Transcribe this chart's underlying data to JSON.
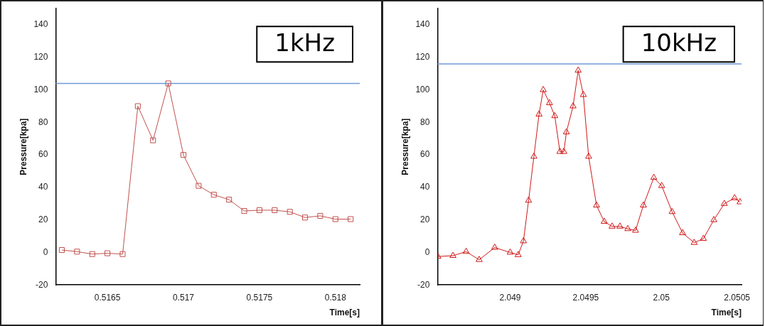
{
  "chart_data": [
    {
      "type": "line",
      "xlabel": "Time[s]",
      "ylabel": "Pressure[kpa]",
      "annotations": [
        "1kHz"
      ],
      "marker": "square",
      "xlim": [
        0.51616,
        0.51816
      ],
      "xticks": [
        0.5165,
        0.517,
        0.5175,
        0.518
      ],
      "ylim": [
        -20,
        150
      ],
      "yticks": [
        -20,
        0,
        20,
        40,
        60,
        80,
        100,
        120,
        140
      ],
      "ref_lines": [
        {
          "axis": "y",
          "value": 104,
          "color": "#6f9ad8"
        }
      ],
      "series": [
        {
          "color": "#c0504d",
          "x": [
            0.5162,
            0.5163,
            0.5164,
            0.5165,
            0.5166,
            0.5167,
            0.5168,
            0.5169,
            0.517,
            0.5171,
            0.5172,
            0.5173,
            0.5174,
            0.5175,
            0.5176,
            0.5177,
            0.5178,
            0.5179,
            0.518,
            0.5181
          ],
          "values": [
            1.5,
            0.5,
            -1,
            -0.5,
            -1,
            90,
            69,
            104,
            60,
            41,
            35.5,
            32.5,
            25.5,
            26,
            26,
            25,
            21.5,
            22.5,
            20.5,
            20.5
          ]
        }
      ]
    },
    {
      "type": "line",
      "xlabel": "Time[s]",
      "ylabel": "Pressure[kpa]",
      "annotations": [
        "10kHz"
      ],
      "marker": "triangle",
      "xlim": [
        2.04852,
        2.05053
      ],
      "xticks": [
        2.049,
        2.0495,
        2.05,
        2.0505
      ],
      "ylim": [
        -20,
        150
      ],
      "yticks": [
        -20,
        0,
        20,
        40,
        60,
        80,
        100,
        120,
        140
      ],
      "ref_lines": [
        {
          "axis": "y",
          "value": 116,
          "color": "#6f9ad8"
        }
      ],
      "series": [
        {
          "color": "#d01818",
          "x": [
            2.048522,
            2.048622,
            2.048709,
            2.048795,
            2.048898,
            2.049,
            2.049053,
            2.049088,
            2.049122,
            2.049157,
            2.049191,
            2.049219,
            2.04926,
            2.049295,
            2.049329,
            2.049355,
            2.049372,
            2.049416,
            2.04945,
            2.049484,
            2.049519,
            2.049571,
            2.049622,
            2.049674,
            2.049726,
            2.049778,
            2.049829,
            2.049881,
            2.04995,
            2.050002,
            2.050071,
            2.05014,
            2.050217,
            2.050278,
            2.050347,
            2.050416,
            2.050484,
            2.05052
          ],
          "values": [
            -2.5,
            -2,
            0.5,
            -4.5,
            3,
            0,
            -1.5,
            7,
            32,
            59,
            85,
            100,
            92,
            84,
            62,
            62,
            74,
            90,
            112,
            97,
            59,
            29,
            19,
            16,
            16,
            14.5,
            13.5,
            29,
            46,
            41,
            25,
            12,
            6,
            8.5,
            20,
            30,
            33.5,
            31
          ]
        }
      ]
    }
  ]
}
